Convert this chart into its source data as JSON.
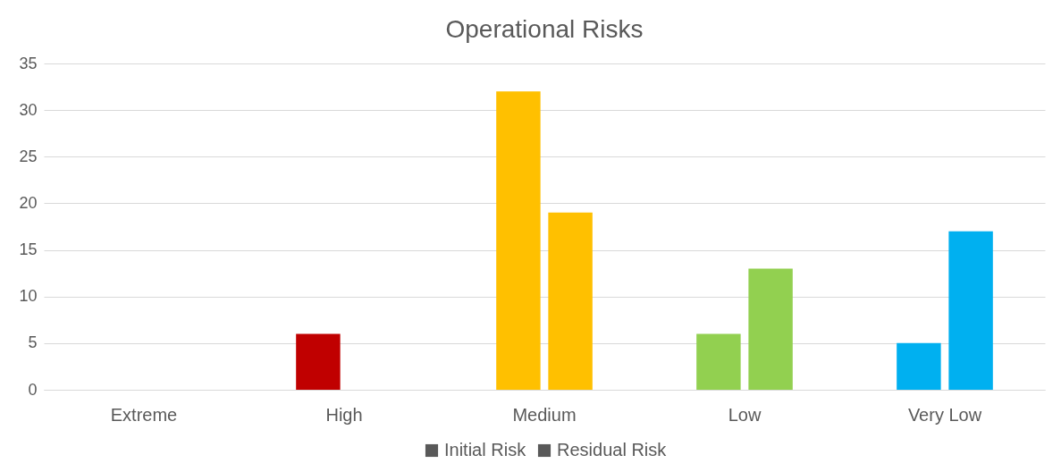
{
  "chart_data": {
    "type": "bar",
    "title": "Operational Risks",
    "categories": [
      "Extreme",
      "High",
      "Medium",
      "Low",
      "Very Low"
    ],
    "series": [
      {
        "name": "Initial Risk",
        "color": "#595959",
        "colors": [
          "#c00000",
          "#c00000",
          "#ffc000",
          "#92d050",
          "#00b0f0"
        ],
        "values": [
          0,
          6,
          32,
          6,
          5
        ]
      },
      {
        "name": "Residual Risk",
        "color": "#595959",
        "colors": [
          "#c00000",
          "#c00000",
          "#ffc000",
          "#92d050",
          "#00b0f0"
        ],
        "values": [
          0,
          0,
          19,
          13,
          17
        ]
      }
    ],
    "ylim": [
      0,
      35
    ],
    "yticks": [
      0,
      5,
      10,
      15,
      20,
      25,
      30,
      35
    ],
    "grid": "y",
    "legend": "bottom"
  }
}
